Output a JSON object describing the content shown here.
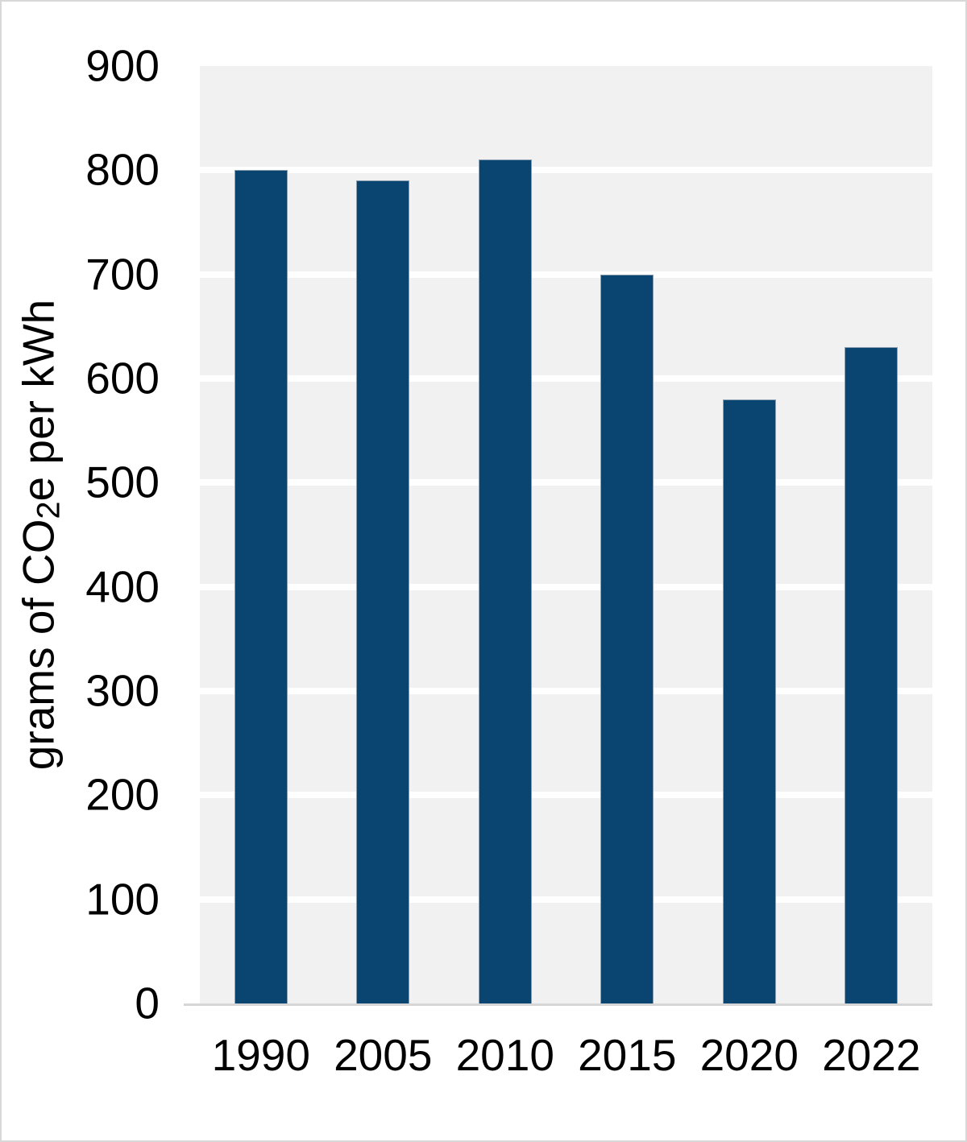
{
  "figure": {
    "background": "#ffffff",
    "frame_border_color": "#d8d8d8"
  },
  "chart_data": {
    "type": "bar",
    "categories": [
      "1990",
      "2005",
      "2010",
      "2015",
      "2020",
      "2022"
    ],
    "values": [
      800,
      790,
      810,
      700,
      580,
      630
    ],
    "title": "",
    "xlabel": "",
    "ylabel": "grams of CO2e per kWh",
    "ylabel_parts": {
      "prefix": "grams of CO",
      "sub": "2",
      "suffix": "e per kWh"
    },
    "ylim": [
      0,
      900
    ],
    "ytick_step": 100,
    "yticks": [
      0,
      100,
      200,
      300,
      400,
      500,
      600,
      700,
      800,
      900
    ],
    "grid": "horizontal white gridlines on",
    "legend": "none",
    "plot_bg_color": "#f1f1f1",
    "gridline_color": "#ffffff",
    "bar_color": "#0a4470",
    "bar_edge_color": "#8aa0b2",
    "axis_line_color": "#d6d6d6",
    "text_color": "#000000"
  }
}
